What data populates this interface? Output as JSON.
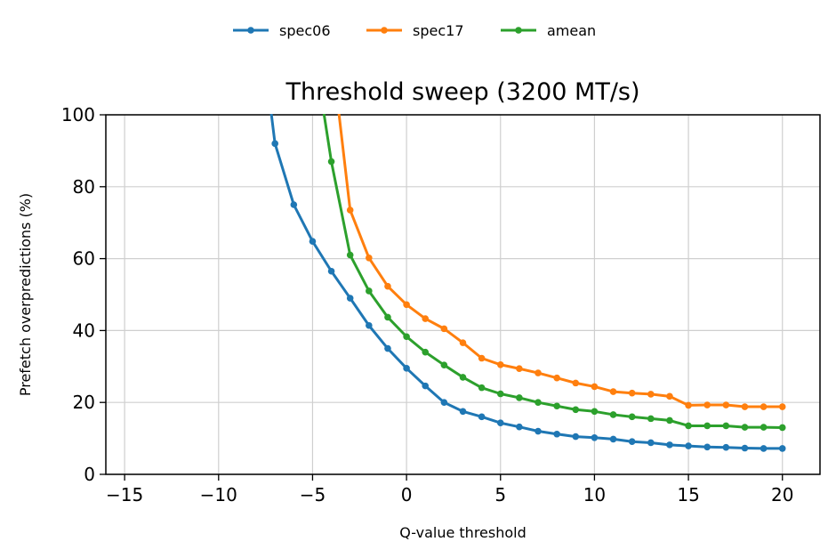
{
  "chart_data": {
    "type": "line",
    "title": "Threshold sweep (3200 MT/s)",
    "xlabel": "Q-value threshold",
    "ylabel": "Prefetch overpredictions (%)",
    "xlim": [
      -16,
      22
    ],
    "ylim": [
      0,
      100
    ],
    "xticks": [
      -15,
      -10,
      -5,
      0,
      5,
      10,
      15,
      20
    ],
    "yticks": [
      0,
      20,
      40,
      60,
      80,
      100
    ],
    "grid": true,
    "legend_position": "top-center",
    "colors": {
      "spec06": "#1f77b4",
      "spec17": "#ff7f0e",
      "amean": "#2ca02c"
    },
    "series": [
      {
        "name": "spec06",
        "x": [
          -7,
          -6,
          -5,
          -4,
          -3,
          -2,
          -1,
          0,
          1,
          2,
          3,
          4,
          5,
          6,
          7,
          8,
          9,
          10,
          11,
          12,
          13,
          14,
          15,
          16,
          17,
          18,
          19,
          20
        ],
        "values": [
          92,
          75,
          64.8,
          56.5,
          49,
          41.4,
          35,
          29.5,
          24.6,
          20,
          17.5,
          16,
          14.3,
          13.2,
          12,
          11.2,
          10.5,
          10.2,
          9.8,
          9.1,
          8.8,
          8.2,
          7.9,
          7.6,
          7.5,
          7.3,
          7.2,
          7.2
        ]
      },
      {
        "name": "spec17",
        "x": [
          -3,
          -2,
          -1,
          0,
          1,
          2,
          3,
          4,
          5,
          6,
          7,
          8,
          9,
          10,
          11,
          12,
          13,
          14,
          15,
          16,
          17,
          18,
          19,
          20
        ],
        "values": [
          73.5,
          60.2,
          52.3,
          47.2,
          43.3,
          40.5,
          36.6,
          32.3,
          30.5,
          29.4,
          28.2,
          26.8,
          25.4,
          24.4,
          23,
          22.6,
          22.3,
          21.7,
          19.2,
          19.3,
          19.3,
          18.8,
          18.8,
          18.8
        ]
      },
      {
        "name": "amean",
        "x": [
          -4,
          -3,
          -2,
          -1,
          0,
          1,
          2,
          3,
          4,
          5,
          6,
          7,
          8,
          9,
          10,
          11,
          12,
          13,
          14,
          15,
          16,
          17,
          18,
          19,
          20
        ],
        "values": [
          87,
          61,
          51,
          43.7,
          38.3,
          34,
          30.4,
          27,
          24.1,
          22.4,
          21.3,
          20,
          19,
          18,
          17.5,
          16.6,
          16,
          15.5,
          15,
          13.5,
          13.5,
          13.5,
          13.1,
          13.1,
          13
        ]
      }
    ],
    "offscale_points": {
      "spec06": {
        "x": -7.2,
        "y": 100
      },
      "spec17": {
        "x": -3.6,
        "y": 100
      },
      "amean": {
        "x": -4.4,
        "y": 100
      }
    }
  }
}
